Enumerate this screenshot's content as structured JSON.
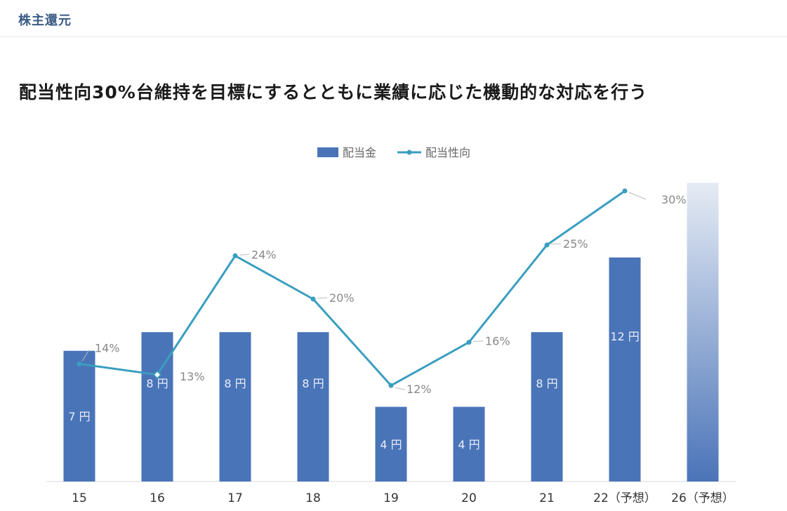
{
  "header": {
    "section_title": "株主還元",
    "headline": "配当性向30%台維持を目標にするとともに業績に応じた機動的な対応を行う"
  },
  "colors": {
    "bar": "#4a74b8",
    "line": "#3a9ec0",
    "forecast_top": "#e6ebf4",
    "forecast_bottom": "#4a74b8"
  },
  "chart_data": {
    "type": "bar+line",
    "title": "",
    "legend": {
      "position": "top-center",
      "bar_label": "配当金",
      "line_label": "配当性向"
    },
    "categories": [
      "15",
      "16",
      "17",
      "18",
      "19",
      "20",
      "21",
      "22（予想）",
      "26（予想）"
    ],
    "series": [
      {
        "name": "配当金",
        "type": "bar",
        "values": [
          7,
          8,
          8,
          8,
          4,
          4,
          8,
          12,
          16
        ],
        "labels": [
          "7 円",
          "8 円",
          "8 円",
          "8 円",
          "4 円",
          "4 円",
          "8 円",
          "12 円",
          ""
        ],
        "forecast_gradient_index": 8
      },
      {
        "name": "配当性向",
        "type": "line",
        "values": [
          14,
          13,
          24,
          20,
          12,
          16,
          25,
          30,
          null
        ],
        "labels": [
          "14%",
          "13%",
          "24%",
          "20%",
          "12%",
          "16%",
          "25%",
          "30%",
          ""
        ]
      }
    ],
    "xlabel": "",
    "ylabel": ""
  }
}
